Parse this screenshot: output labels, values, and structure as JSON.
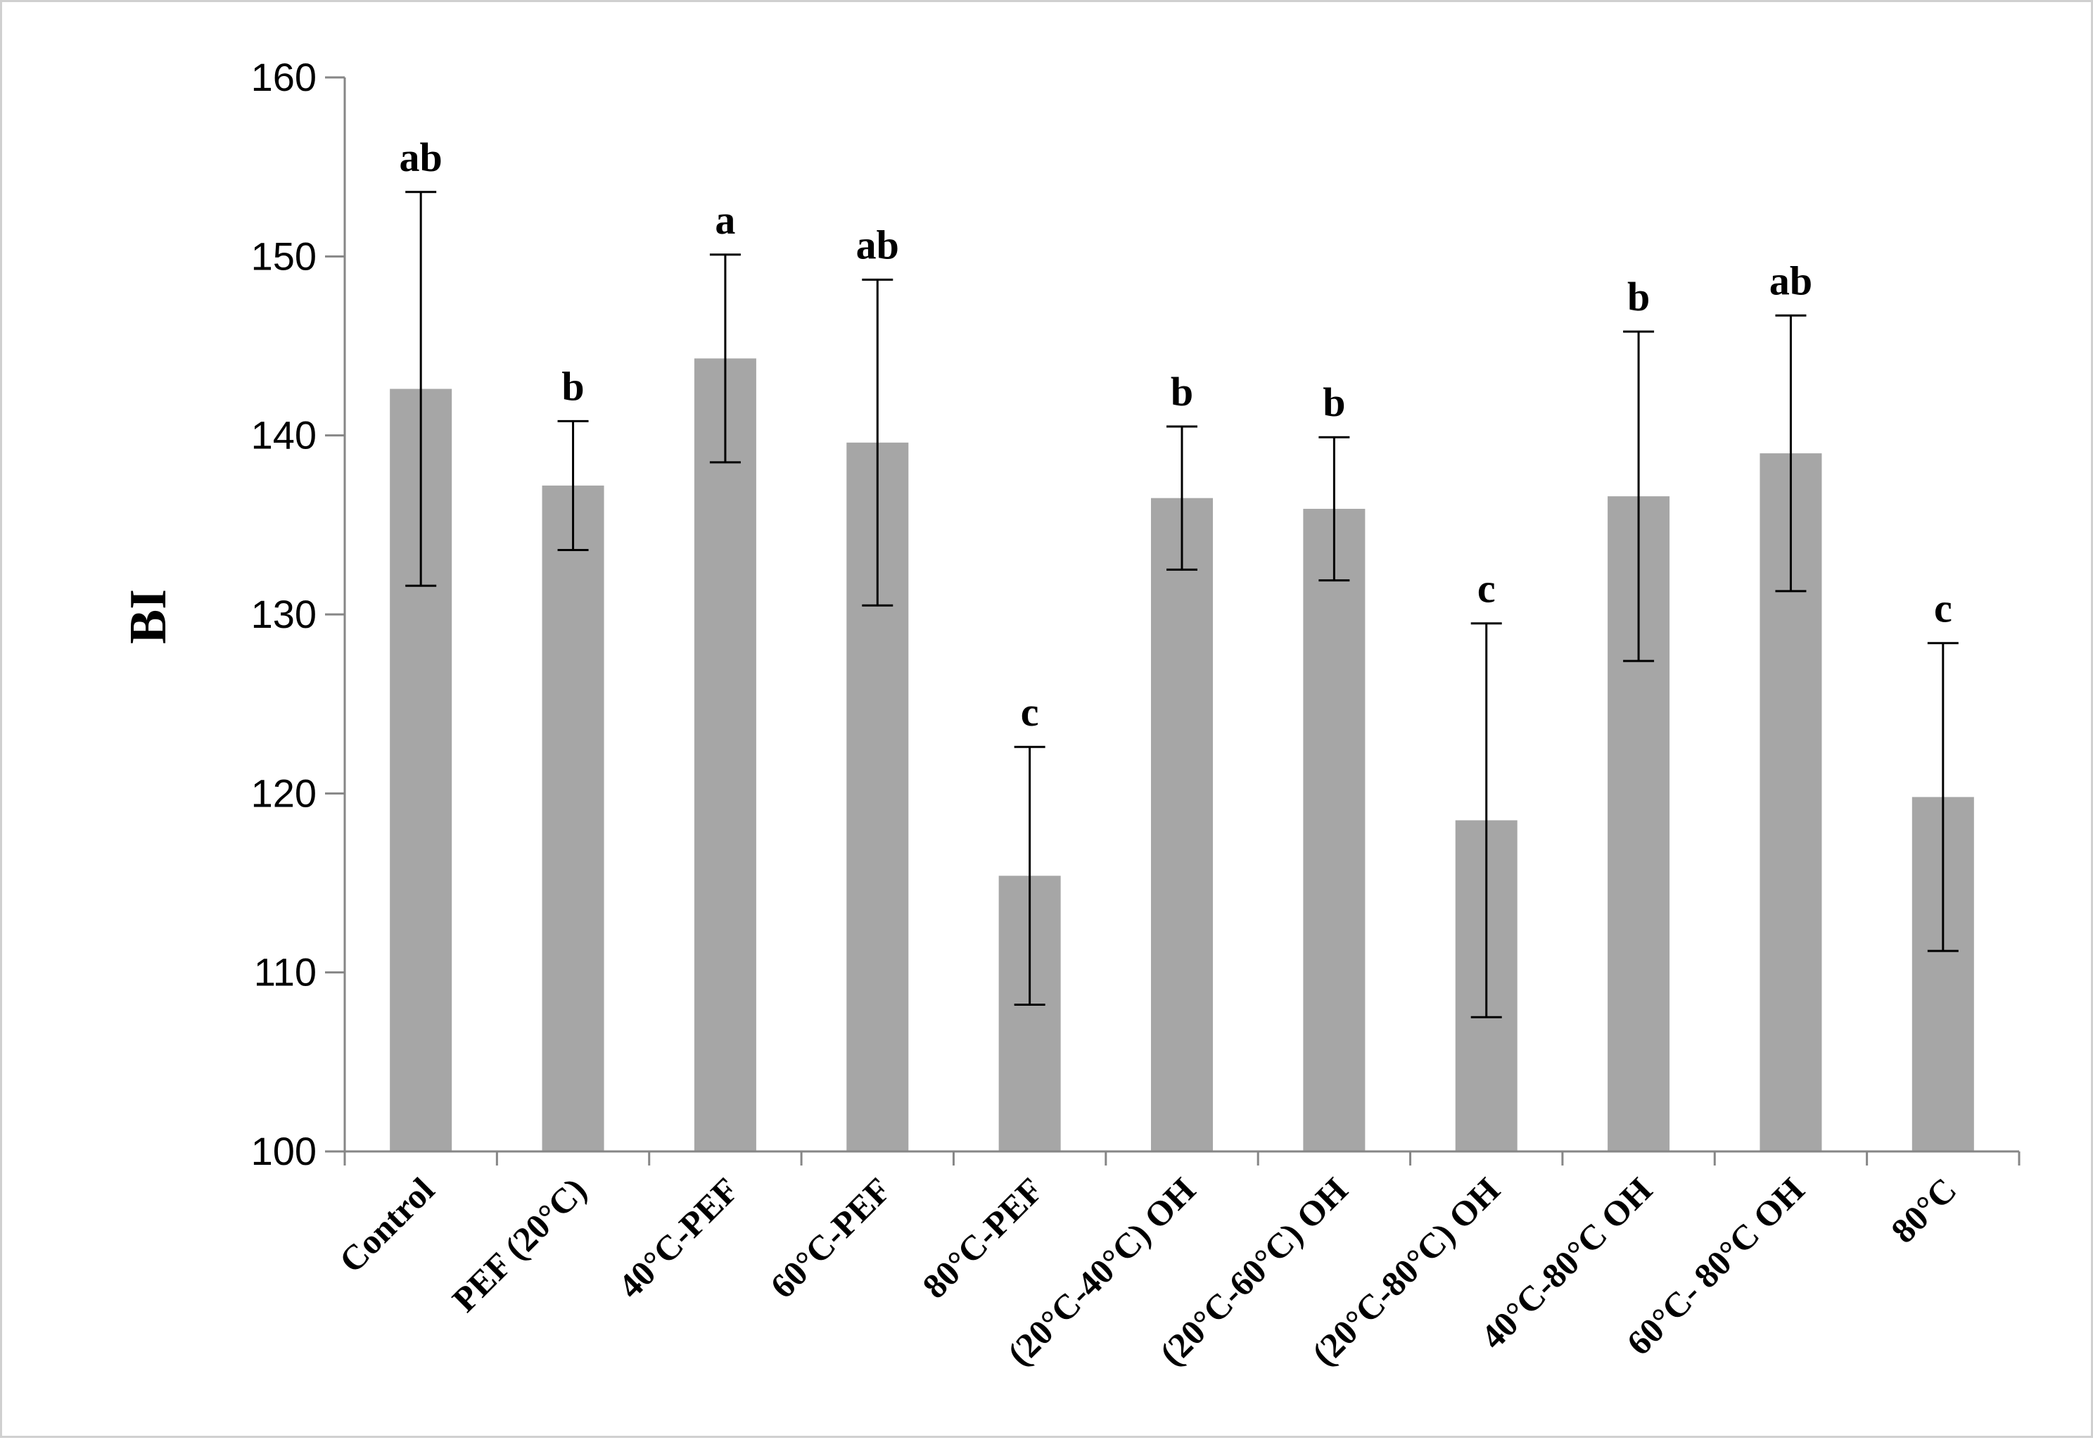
{
  "chart_data": {
    "type": "bar",
    "title": "",
    "xlabel": "",
    "ylabel": "BI",
    "ylim": [
      100,
      160
    ],
    "yticks": [
      "100",
      "110",
      "120",
      "130",
      "140",
      "150",
      "160"
    ],
    "grid": false,
    "legend": "none",
    "categories": [
      "Control",
      "PEF (20°C)",
      "40°C-PEF",
      "60°C-PEF",
      "80°C-PEF",
      "(20°C-40°C) OH",
      "(20°C-60°C) OH",
      "(20°C-80°C) OH",
      "40°C-80°C OH",
      "60°C- 80°C OH",
      "80°C"
    ],
    "values": [
      142.6,
      137.2,
      144.3,
      139.6,
      115.4,
      136.5,
      135.9,
      118.5,
      136.6,
      139.0,
      119.8
    ],
    "error": [
      11.0,
      3.6,
      5.8,
      9.1,
      7.2,
      4.0,
      4.0,
      11.0,
      9.2,
      7.7,
      8.6
    ],
    "significance_letters": [
      "ab",
      "b",
      "a",
      "ab",
      "c",
      "b",
      "b",
      "c",
      "b",
      "ab",
      "c"
    ],
    "colors": {
      "bar": "#a6a6a6",
      "axis": "#868686",
      "error_bar": "#000000"
    }
  }
}
